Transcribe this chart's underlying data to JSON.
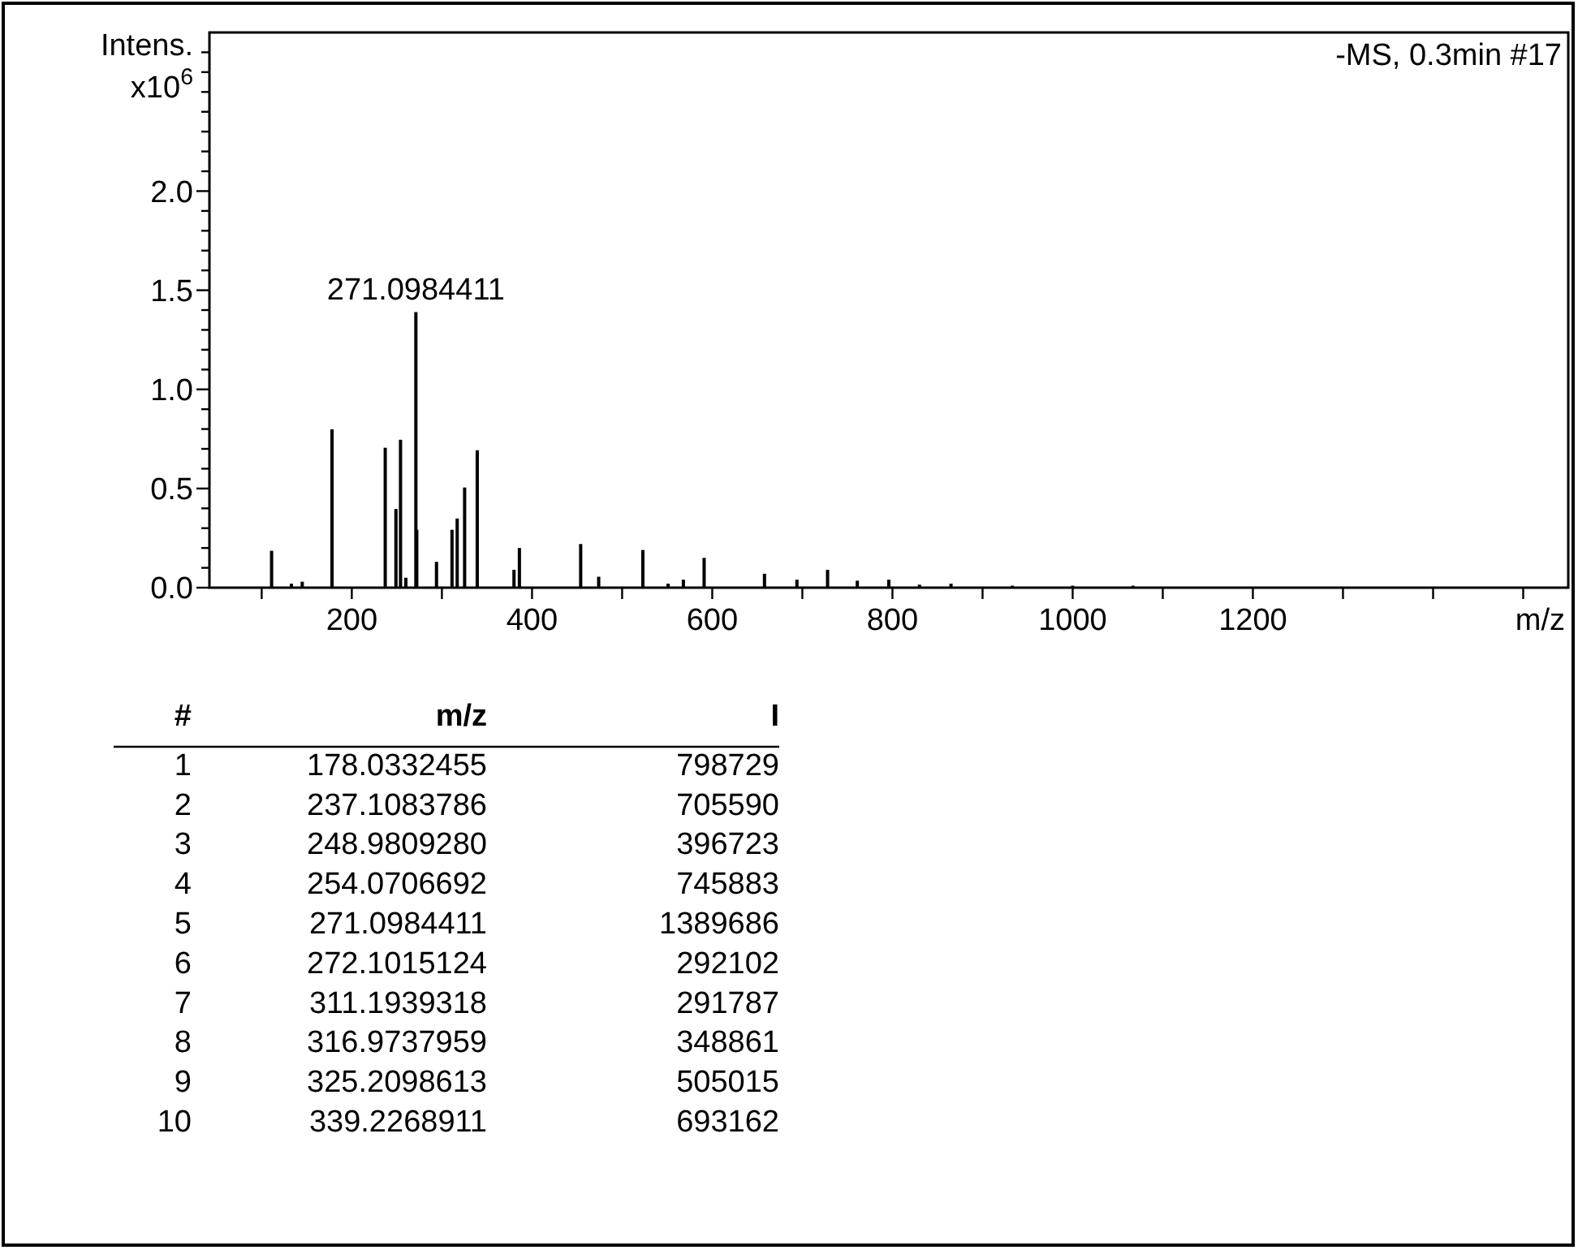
{
  "chart_data": {
    "type": "bar",
    "title": "-MS, 0.3min #17",
    "xlabel": "m/z",
    "ylabel": "Intens. x10$^{6}$",
    "color": "#000000",
    "x": [
      111,
      133,
      145,
      178.0332455,
      237.1083786,
      248.980928,
      254.0706692,
      260,
      271.0984411,
      272.1015124,
      294,
      311.1939318,
      316.9737959,
      325.2098613,
      339.2268911,
      380,
      386,
      454,
      474,
      523,
      551,
      568,
      591,
      658,
      694,
      728,
      761,
      796,
      830,
      865,
      933,
      1000,
      1067
    ],
    "values": [
      0.186,
      0.02,
      0.03,
      0.798729,
      0.70559,
      0.396723,
      0.745883,
      0.05,
      1.389686,
      0.292102,
      0.13,
      0.291787,
      0.348861,
      0.505015,
      0.693162,
      0.09,
      0.2,
      0.22,
      0.055,
      0.19,
      0.02,
      0.04,
      0.15,
      0.07,
      0.04,
      0.09,
      0.035,
      0.04,
      0.015,
      0.02,
      0.01,
      0.01,
      0.01
    ],
    "xlim": [
      42,
      1550
    ],
    "ylim": [
      0,
      2.8
    ],
    "xticks": [
      {
        "value": 100,
        "label": null
      },
      200,
      400,
      600,
      800,
      1000,
      1200,
      {
        "value": 300,
        "label": null
      },
      {
        "value": 500,
        "label": null
      },
      {
        "value": 700,
        "label": null
      },
      {
        "value": 900,
        "label": null
      },
      {
        "value": 1100,
        "label": null
      },
      {
        "value": 1300,
        "label": null
      },
      {
        "value": 1400,
        "label": null
      },
      {
        "value": 1500,
        "label": null
      }
    ],
    "yticks": [
      {
        "value": 0,
        "label": "0.0"
      },
      {
        "value": 0.5,
        "label": "0.5"
      },
      {
        "value": 1,
        "label": "1.0"
      },
      {
        "value": 1.5,
        "label": "1.5"
      },
      {
        "value": 2,
        "label": "2.0"
      },
      {
        "value": 0.1,
        "label": null
      },
      {
        "value": 0.2,
        "label": null
      },
      {
        "value": 0.3,
        "label": null
      },
      {
        "value": 0.4,
        "label": null
      },
      {
        "value": 0.6,
        "label": null
      },
      {
        "value": 0.7,
        "label": null
      },
      {
        "value": 0.8,
        "label": null
      },
      {
        "value": 0.9,
        "label": null
      },
      {
        "value": 1.1,
        "label": null
      },
      {
        "value": 1.2,
        "label": null
      },
      {
        "value": 1.3,
        "label": null
      },
      {
        "value": 1.4,
        "label": null
      },
      {
        "value": 1.6,
        "label": null
      },
      {
        "value": 1.7,
        "label": null
      },
      {
        "value": 1.8,
        "label": null
      },
      {
        "value": 1.9,
        "label": null
      },
      {
        "value": 2.1,
        "label": null
      },
      {
        "value": 2.2,
        "label": null
      },
      {
        "value": 2.3,
        "label": null
      },
      {
        "value": 2.4,
        "label": null
      },
      {
        "value": 2.5,
        "label": null
      },
      {
        "value": 2.6,
        "label": null
      },
      {
        "value": 2.7,
        "label": null
      }
    ],
    "annotations": [
      {
        "text": "271.0984411",
        "x": 271.0984411,
        "y": 1.389686
      },
      "# m/z I",
      "1 178.0332455 798729",
      "2 237.1083786 705590",
      "3 248.9809280 396723",
      "4 254.0706692 745883",
      "5 271.0984411 1389686",
      "6 272.1015124 292102",
      "7 311.1939318 291787",
      "8 316.9737959 348861",
      "9 325.2098613 505015",
      "10 339.2268911 693162"
    ]
  }
}
